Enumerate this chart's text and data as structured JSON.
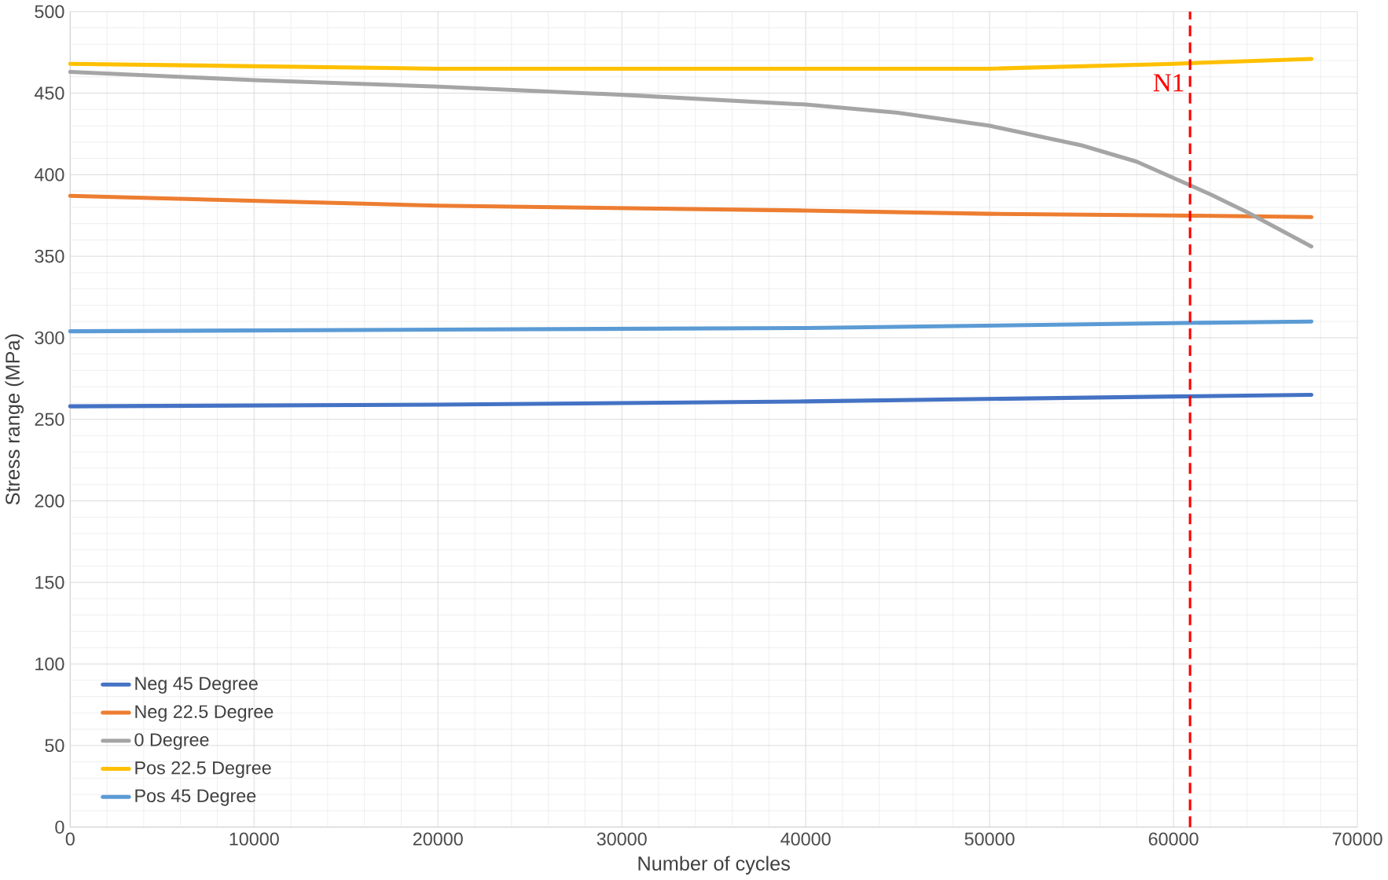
{
  "chart_data": {
    "type": "line",
    "xlabel": "Number of cycles",
    "ylabel": "Stress range (MPa)",
    "xlim": [
      0,
      70000
    ],
    "ylim": [
      0,
      500
    ],
    "xticks": [
      0,
      10000,
      20000,
      30000,
      40000,
      50000,
      60000,
      70000
    ],
    "yticks": [
      0,
      50,
      100,
      150,
      200,
      250,
      300,
      350,
      400,
      450,
      500
    ],
    "grid": true,
    "legend": "bottom left",
    "marker": "none",
    "line_style": "solid",
    "series": [
      {
        "name": "Neg 45 Degree",
        "color": "#4472c4",
        "x": [
          0,
          20000,
          40000,
          60000,
          67500
        ],
        "values": [
          258,
          259,
          261,
          264,
          265
        ]
      },
      {
        "name": "Neg 22.5 Degree",
        "color": "#ed7d31",
        "x": [
          0,
          20000,
          40000,
          50000,
          60000,
          67500
        ],
        "values": [
          387,
          381,
          378,
          376,
          375,
          374
        ]
      },
      {
        "name": "0 Degree",
        "color": "#a5a5a5",
        "x": [
          0,
          10000,
          20000,
          30000,
          40000,
          45000,
          50000,
          55000,
          58000,
          60000,
          62000,
          64000,
          66000,
          67500
        ],
        "values": [
          463,
          458,
          454,
          449,
          443,
          438,
          430,
          418,
          408,
          398,
          388,
          377,
          365,
          356
        ]
      },
      {
        "name": "Pos 22.5 Degree",
        "color": "#ffc000",
        "x": [
          0,
          20000,
          40000,
          50000,
          60000,
          67500
        ],
        "values": [
          468,
          465,
          465,
          465,
          468,
          471
        ]
      },
      {
        "name": "Pos 45 Degree",
        "color": "#5b9bd5",
        "x": [
          0,
          20000,
          40000,
          60000,
          67500
        ],
        "values": [
          304,
          305,
          306,
          309,
          310
        ]
      }
    ],
    "ref_lines": [
      {
        "axis": "x",
        "value": 60900,
        "label": "N1",
        "color": "#ff0000",
        "line_style": "dashed"
      }
    ]
  }
}
